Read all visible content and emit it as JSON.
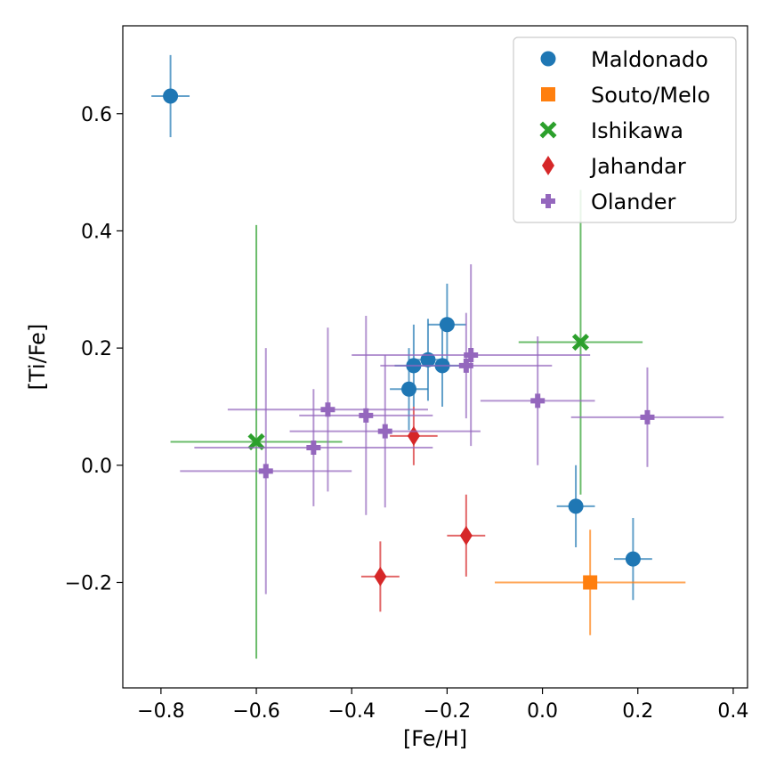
{
  "chart_data": {
    "type": "scatter",
    "xlabel": "[Fe/H]",
    "ylabel": "[Ti/Fe]",
    "xlim": [
      -0.88,
      0.43
    ],
    "ylim": [
      -0.38,
      0.75
    ],
    "xticks": [
      {
        "value": -0.8,
        "label": "−0.8"
      },
      {
        "value": -0.6,
        "label": "−0.6"
      },
      {
        "value": -0.4,
        "label": "−0.4"
      },
      {
        "value": -0.2,
        "label": "−0.2"
      },
      {
        "value": 0.0,
        "label": "0.0"
      },
      {
        "value": 0.2,
        "label": "0.2"
      },
      {
        "value": 0.4,
        "label": "0.4"
      }
    ],
    "yticks": [
      {
        "value": -0.2,
        "label": "−0.2"
      },
      {
        "value": 0.0,
        "label": "0.0"
      },
      {
        "value": 0.2,
        "label": "0.2"
      },
      {
        "value": 0.4,
        "label": "0.4"
      },
      {
        "value": 0.6,
        "label": "0.6"
      }
    ],
    "grid": false,
    "legend_position": "top-right",
    "series": [
      {
        "name": "Maldonado",
        "marker": "circle",
        "color": "#1f77b4",
        "points": [
          {
            "x": -0.78,
            "y": 0.63,
            "xerr": 0.04,
            "yerr": 0.07
          },
          {
            "x": -0.28,
            "y": 0.13,
            "xerr": 0.04,
            "yerr": 0.07
          },
          {
            "x": -0.27,
            "y": 0.17,
            "xerr": 0.04,
            "yerr": 0.07
          },
          {
            "x": -0.24,
            "y": 0.18,
            "xerr": 0.04,
            "yerr": 0.07
          },
          {
            "x": -0.21,
            "y": 0.17,
            "xerr": 0.04,
            "yerr": 0.07
          },
          {
            "x": -0.2,
            "y": 0.24,
            "xerr": 0.04,
            "yerr": 0.07
          },
          {
            "x": 0.07,
            "y": -0.07,
            "xerr": 0.04,
            "yerr": 0.07
          },
          {
            "x": 0.19,
            "y": -0.16,
            "xerr": 0.04,
            "yerr": 0.07
          }
        ]
      },
      {
        "name": "Souto/Melo",
        "marker": "square",
        "color": "#ff7f0e",
        "points": [
          {
            "x": 0.1,
            "y": -0.2,
            "xerr": 0.2,
            "yerr": 0.09
          }
        ]
      },
      {
        "name": "Ishikawa",
        "marker": "x",
        "color": "#2ca02c",
        "points": [
          {
            "x": -0.6,
            "y": 0.04,
            "xerr": 0.18,
            "yerr": 0.37
          },
          {
            "x": 0.08,
            "y": 0.21,
            "xerr": 0.13,
            "yerr": 0.26
          }
        ]
      },
      {
        "name": "Jahandar",
        "marker": "diamond",
        "color": "#d62728",
        "points": [
          {
            "x": -0.34,
            "y": -0.19,
            "xerr": 0.04,
            "yerr": 0.06
          },
          {
            "x": -0.27,
            "y": 0.05,
            "xerr": 0.05,
            "yerr": 0.05
          },
          {
            "x": -0.16,
            "y": -0.12,
            "xerr": 0.04,
            "yerr": 0.07
          }
        ]
      },
      {
        "name": "Olander",
        "marker": "plus",
        "color": "#9467bd",
        "points": [
          {
            "x": -0.58,
            "y": -0.01,
            "xerr": 0.18,
            "yerr": 0.21
          },
          {
            "x": -0.48,
            "y": 0.03,
            "xerr": 0.25,
            "yerr": 0.1
          },
          {
            "x": -0.45,
            "y": 0.095,
            "xerr": 0.21,
            "yerr": 0.14
          },
          {
            "x": -0.37,
            "y": 0.085,
            "xerr": 0.14,
            "yerr": 0.17
          },
          {
            "x": -0.33,
            "y": 0.058,
            "xerr": 0.2,
            "yerr": 0.13
          },
          {
            "x": -0.16,
            "y": 0.17,
            "xerr": 0.18,
            "yerr": 0.09
          },
          {
            "x": -0.15,
            "y": 0.188,
            "xerr": 0.25,
            "yerr": 0.155
          },
          {
            "x": -0.01,
            "y": 0.11,
            "xerr": 0.12,
            "yerr": 0.11
          },
          {
            "x": 0.22,
            "y": 0.082,
            "xerr": 0.16,
            "yerr": 0.085
          }
        ]
      }
    ]
  }
}
